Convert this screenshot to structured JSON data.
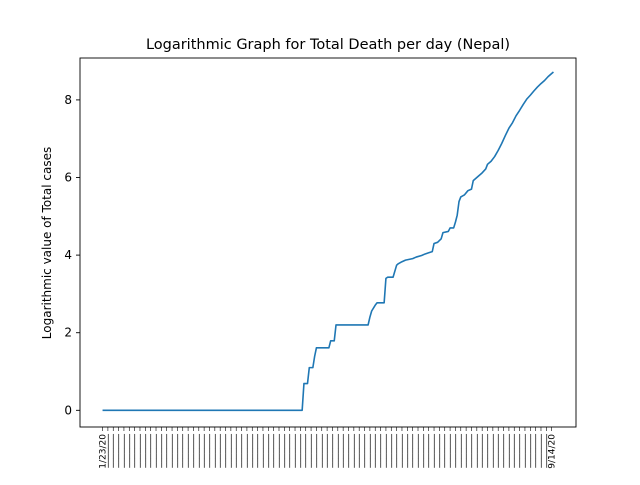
{
  "chart_data": {
    "type": "line",
    "title": "Logarithmic Graph for Total Death per day (Nepal)",
    "xlabel": "",
    "ylabel": "Logarithmic value of Total cases",
    "grid": false,
    "legend": "none",
    "ylim": [
      -0.43,
      9.08
    ],
    "yticks": [
      0,
      2,
      4,
      6,
      8
    ],
    "x_tick_labels_note": "dense rotated date labels, illegible in the screenshot",
    "x_first_label": "1/23/20",
    "x_last_label": "9/14/20",
    "series_color": "#1f77b4",
    "series": [
      {
        "points": [
          [
            0,
            0
          ],
          [
            112,
            0
          ],
          [
            113,
            0.69
          ],
          [
            115,
            0.69
          ],
          [
            116,
            1.1
          ],
          [
            118,
            1.1
          ],
          [
            119,
            1.39
          ],
          [
            120,
            1.61
          ],
          [
            127,
            1.61
          ],
          [
            128,
            1.79
          ],
          [
            130,
            1.79
          ],
          [
            131,
            2.2
          ],
          [
            149,
            2.2
          ],
          [
            150,
            2.4
          ],
          [
            151,
            2.56
          ],
          [
            153,
            2.71
          ],
          [
            154,
            2.77
          ],
          [
            158,
            2.77
          ],
          [
            159,
            3.4
          ],
          [
            160,
            3.43
          ],
          [
            163,
            3.43
          ],
          [
            165,
            3.74
          ],
          [
            166,
            3.78
          ],
          [
            168,
            3.83
          ],
          [
            170,
            3.87
          ],
          [
            174,
            3.91
          ],
          [
            176,
            3.95
          ],
          [
            179,
            3.99
          ],
          [
            181,
            4.03
          ],
          [
            183,
            4.06
          ],
          [
            185,
            4.09
          ],
          [
            186,
            4.3
          ],
          [
            188,
            4.33
          ],
          [
            190,
            4.42
          ],
          [
            191,
            4.58
          ],
          [
            194,
            4.61
          ],
          [
            195,
            4.7
          ],
          [
            197,
            4.7
          ],
          [
            198,
            4.85
          ],
          [
            199,
            5.03
          ],
          [
            200,
            5.38
          ],
          [
            201,
            5.5
          ],
          [
            203,
            5.55
          ],
          [
            205,
            5.66
          ],
          [
            207,
            5.7
          ],
          [
            208,
            5.92
          ],
          [
            210,
            6.0
          ],
          [
            213,
            6.12
          ],
          [
            215,
            6.22
          ],
          [
            216,
            6.34
          ],
          [
            218,
            6.42
          ],
          [
            220,
            6.54
          ],
          [
            222,
            6.7
          ],
          [
            224,
            6.88
          ],
          [
            226,
            7.08
          ],
          [
            228,
            7.27
          ],
          [
            230,
            7.41
          ],
          [
            232,
            7.59
          ],
          [
            234,
            7.73
          ],
          [
            236,
            7.88
          ],
          [
            238,
            8.02
          ],
          [
            240,
            8.12
          ],
          [
            242,
            8.23
          ],
          [
            244,
            8.33
          ],
          [
            246,
            8.42
          ],
          [
            248,
            8.5
          ],
          [
            250,
            8.6
          ],
          [
            252,
            8.68
          ],
          [
            253,
            8.72
          ]
        ]
      }
    ]
  }
}
